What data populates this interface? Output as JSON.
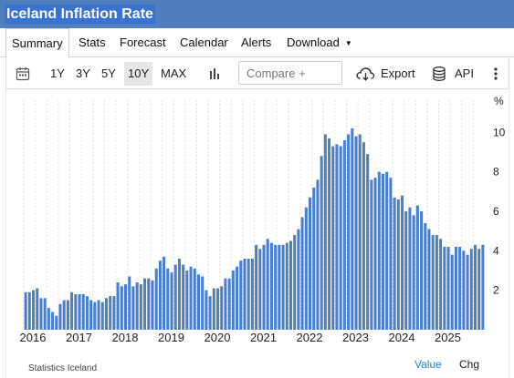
{
  "title": "Iceland Inflation Rate",
  "tabs": [
    {
      "label": "Summary"
    },
    {
      "label": "Stats"
    },
    {
      "label": "Forecast"
    },
    {
      "label": "Calendar"
    },
    {
      "label": "Alerts"
    },
    {
      "label": "Download"
    }
  ],
  "toolbar": {
    "ranges": [
      "1Y",
      "3Y",
      "5Y",
      "10Y",
      "MAX"
    ],
    "selected_range": "10Y",
    "compare_placeholder": "Compare +",
    "export_label": "Export",
    "api_label": "API",
    "icons": [
      "calendar-icon",
      "bar-chart-icon",
      "cloud-download-icon",
      "database-icon",
      "more-vertical-icon"
    ]
  },
  "footer": {
    "source": "Statistics Iceland",
    "value_label": "Value",
    "chg_label": "Chg"
  },
  "colors": {
    "title_bar": "#4f7fbe",
    "title_highlight": "#3a73cf",
    "bar": "#4a7fcb",
    "link": "#2a7fd4"
  },
  "chart_data": {
    "type": "bar",
    "unit": "%",
    "x_start": "2016-01",
    "frequency": "monthly",
    "x_tick_labels": [
      "2016",
      "2017",
      "2018",
      "2019",
      "2020",
      "2021",
      "2022",
      "2023",
      "2024",
      "2025"
    ],
    "y_ticks": [
      2,
      4,
      6,
      8,
      10
    ],
    "ylim": [
      0,
      10.8
    ],
    "grid": "vertical dotted",
    "values": [
      1.9,
      1.9,
      2.0,
      2.1,
      1.6,
      1.6,
      1.1,
      0.9,
      0.7,
      1.3,
      1.5,
      1.5,
      1.9,
      1.8,
      1.8,
      1.8,
      1.7,
      1.5,
      1.4,
      1.5,
      1.4,
      1.6,
      1.7,
      1.7,
      2.4,
      2.2,
      2.3,
      2.7,
      2.2,
      2.4,
      2.3,
      2.6,
      2.6,
      2.5,
      3.1,
      3.5,
      3.7,
      3.1,
      2.9,
      3.3,
      3.6,
      3.3,
      3.0,
      3.2,
      3.1,
      2.8,
      2.7,
      2.0,
      1.7,
      2.1,
      2.1,
      2.2,
      2.6,
      2.6,
      3.0,
      3.2,
      3.5,
      3.6,
      3.6,
      3.6,
      4.3,
      4.1,
      4.3,
      4.6,
      4.4,
      4.3,
      4.3,
      4.3,
      4.4,
      4.5,
      4.8,
      5.1,
      5.7,
      6.2,
      6.7,
      7.2,
      7.6,
      8.8,
      9.9,
      9.7,
      9.3,
      9.4,
      9.3,
      9.6,
      9.9,
      10.2,
      9.8,
      9.9,
      9.5,
      8.9,
      7.6,
      7.7,
      8.0,
      7.9,
      8.0,
      7.7,
      6.7,
      6.6,
      6.8,
      6.0,
      6.2,
      5.8,
      6.3,
      6.0,
      5.4,
      5.1,
      4.8,
      4.8,
      4.6,
      4.2,
      4.2,
      3.8,
      4.2,
      4.2,
      4.0,
      3.8,
      4.1,
      4.3,
      4.1,
      4.3
    ]
  }
}
